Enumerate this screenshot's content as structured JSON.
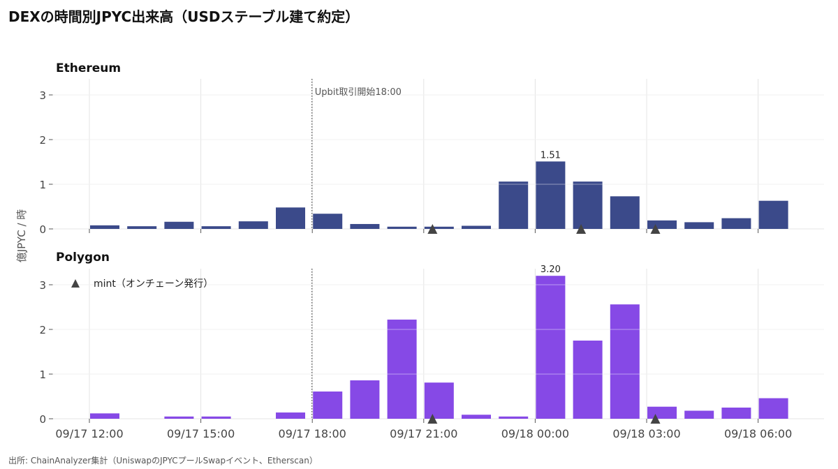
{
  "title": "DEXの時間別JPYC出来高（USDステーブル建て約定）",
  "source": "出所: ChainAnalyzer集計（UniswapのJPYCプールSwapイベント、Etherscan）",
  "colors": {
    "ethereum": "#3b4a8a",
    "polygon": "#8649e6",
    "mint": "#444444"
  },
  "chart_data": [
    {
      "type": "bar",
      "panel": "Ethereum",
      "ylabel": "億JPYC / 時",
      "ylim": [
        0,
        3.3
      ],
      "yticks": [
        0,
        1,
        2,
        3
      ],
      "x": [
        "09/17 12:00",
        "09/17 13:00",
        "09/17 14:00",
        "09/17 15:00",
        "09/17 16:00",
        "09/17 17:00",
        "09/17 18:00",
        "09/17 19:00",
        "09/17 20:00",
        "09/17 21:00",
        "09/17 22:00",
        "09/17 23:00",
        "09/18 00:00",
        "09/18 01:00",
        "09/18 02:00",
        "09/18 03:00",
        "09/18 04:00",
        "09/18 05:00",
        "09/18 06:00"
      ],
      "values": [
        0.08,
        0.06,
        0.16,
        0.06,
        0.17,
        0.48,
        0.34,
        0.11,
        0.05,
        0.05,
        0.07,
        1.06,
        1.51,
        1.06,
        0.73,
        0.19,
        0.15,
        0.24,
        0.63
      ],
      "data_labels": [
        {
          "x": "09/18 00:00",
          "text": "1.51"
        }
      ],
      "mint_events": [
        "09/17 21:00",
        "09/18 01:00",
        "09/18 03:00"
      ],
      "vline": {
        "x": "09/17 18:00",
        "label": "Upbit取引開始18:00"
      }
    },
    {
      "type": "bar",
      "panel": "Polygon",
      "ylim": [
        0,
        3.3
      ],
      "yticks": [
        0,
        1,
        2,
        3
      ],
      "x": [
        "09/17 12:00",
        "09/17 13:00",
        "09/17 14:00",
        "09/17 15:00",
        "09/17 16:00",
        "09/17 17:00",
        "09/17 18:00",
        "09/17 19:00",
        "09/17 20:00",
        "09/17 21:00",
        "09/17 22:00",
        "09/17 23:00",
        "09/18 00:00",
        "09/18 01:00",
        "09/18 02:00",
        "09/18 03:00",
        "09/18 04:00",
        "09/18 05:00",
        "09/18 06:00"
      ],
      "values": [
        0.12,
        0,
        0.05,
        0.05,
        0,
        0.14,
        0.61,
        0.86,
        2.22,
        0.81,
        0.09,
        0.05,
        3.2,
        1.75,
        2.56,
        0.27,
        0.18,
        0.25,
        0.46
      ],
      "data_labels": [
        {
          "x": "09/18 00:00",
          "text": "3.20"
        }
      ],
      "mint_events": [
        "09/17 21:00",
        "09/18 03:00"
      ],
      "vline": {
        "x": "09/17 18:00"
      },
      "legend": "mint（オンチェーン発行）",
      "xtick_labels": [
        "09/17 12:00",
        "09/17 15:00",
        "09/17 18:00",
        "09/17 21:00",
        "09/18 00:00",
        "09/18 03:00",
        "09/18 06:00"
      ]
    }
  ]
}
